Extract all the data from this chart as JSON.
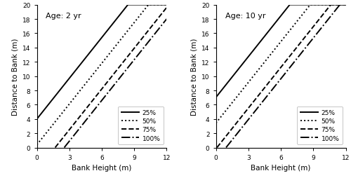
{
  "panels": [
    {
      "title": "Age: 2 yr",
      "age": 2
    },
    {
      "title": "Age: 10 yr",
      "age": 10
    }
  ],
  "lines": [
    {
      "label": "25%",
      "linestyle": "solid",
      "pct": 25
    },
    {
      "label": "50%",
      "linestyle": "dotted",
      "pct": 50
    },
    {
      "label": "75%",
      "linestyle": "dashed",
      "pct": 75
    },
    {
      "label": "100%",
      "linestyle": "dashdot",
      "pct": 100
    }
  ],
  "slope": 1.9,
  "age_coef": 0.38,
  "intercepts_age2": {
    "25": 4.0,
    "50": 0.4,
    "75": -3.2,
    "100": -4.8
  },
  "xlim": [
    0,
    12
  ],
  "ylim": [
    0,
    20
  ],
  "xticks": [
    0,
    3,
    6,
    9,
    12
  ],
  "yticks": [
    0,
    2,
    4,
    6,
    8,
    10,
    12,
    14,
    16,
    18,
    20
  ],
  "xlabel": "Bank Height (m)",
  "ylabel": "Distance to Bank (m)",
  "color": "#000000",
  "linewidth": 1.4,
  "legend_fontsize": 6.5,
  "tick_labelsize": 6.5,
  "axis_labelsize": 7.5,
  "title_fontsize": 8
}
